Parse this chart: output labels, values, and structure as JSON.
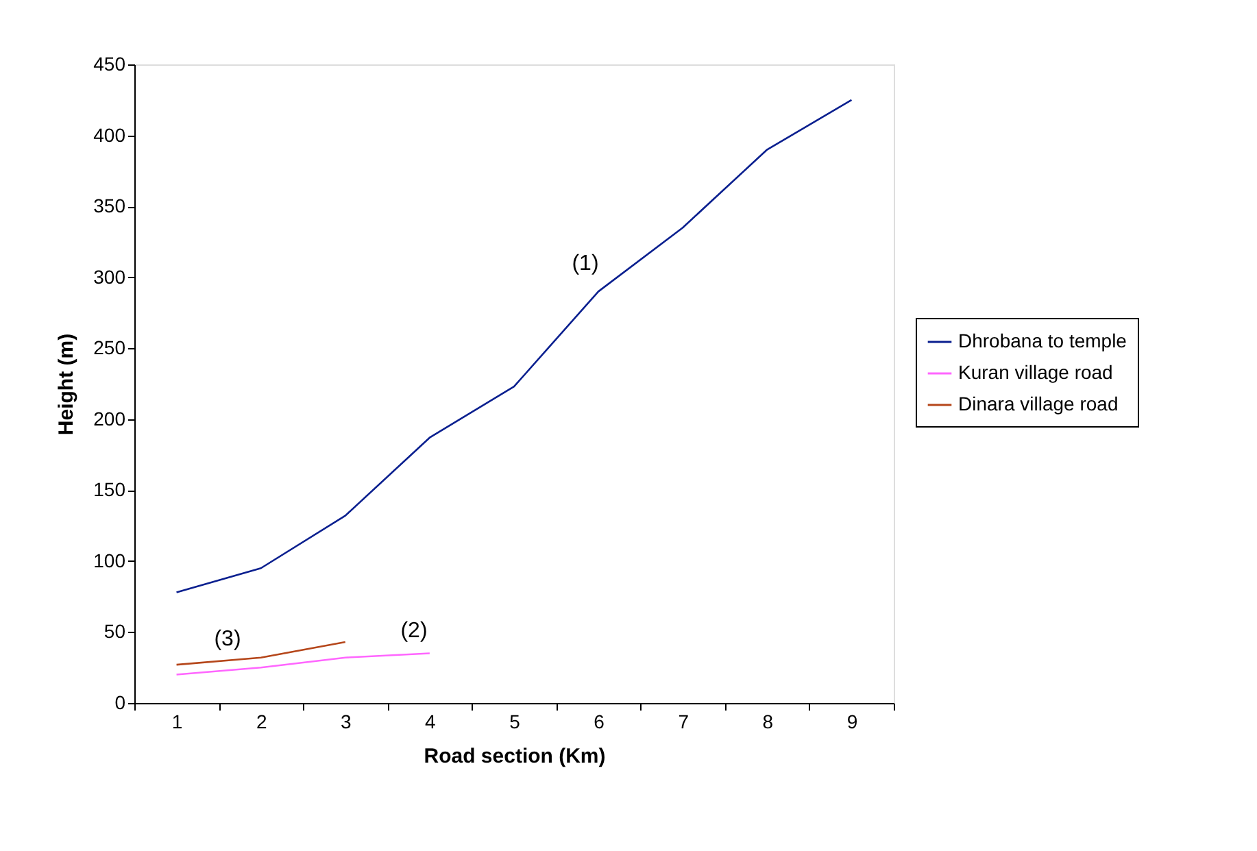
{
  "chart_data": {
    "type": "line",
    "xlabel": "Road section (Km)",
    "ylabel": "Height (m)",
    "categories": [
      "1",
      "2",
      "3",
      "4",
      "5",
      "6",
      "7",
      "8",
      "9"
    ],
    "series": [
      {
        "name": "Dhrobana to temple",
        "color": "#0a1f8f",
        "values": [
          78,
          95,
          132,
          187,
          223,
          290,
          335,
          390,
          425
        ]
      },
      {
        "name": "Kuran village road",
        "color": "#ff66ff",
        "values": [
          20,
          25,
          32,
          35,
          null,
          null,
          null,
          null,
          null
        ]
      },
      {
        "name": "Dinara village road",
        "color": "#b5461a",
        "values": [
          27,
          32,
          43,
          null,
          null,
          null,
          null,
          null,
          null
        ]
      }
    ],
    "ylim": [
      0,
      450
    ],
    "yticks": [
      0,
      50,
      100,
      150,
      200,
      250,
      300,
      350,
      400,
      450
    ],
    "annotations": [
      "(1)",
      "(2)",
      "(3)"
    ],
    "legend": "right",
    "grid": false
  }
}
